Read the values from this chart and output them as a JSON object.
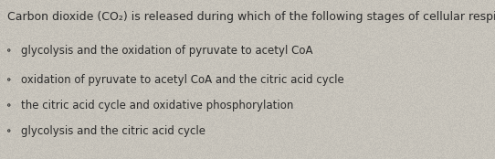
{
  "question_part1": "Carbon dioxide (CO",
  "question_sub": "2",
  "question_part2": ") is released during which of the following stages of cellular respiration?",
  "options": [
    "glycolysis and the oxidation of pyruvate to acetyl CoA",
    "oxidation of pyruvate to acetyl CoA and the citric acid cycle",
    "the citric acid cycle and oxidative phosphorylation",
    "glycolysis and the citric acid cycle"
  ],
  "background_color": "#cdc9c0",
  "text_color": "#2a2a2a",
  "question_fontsize": 9.0,
  "option_fontsize": 8.5,
  "noise_alpha": 0.18
}
